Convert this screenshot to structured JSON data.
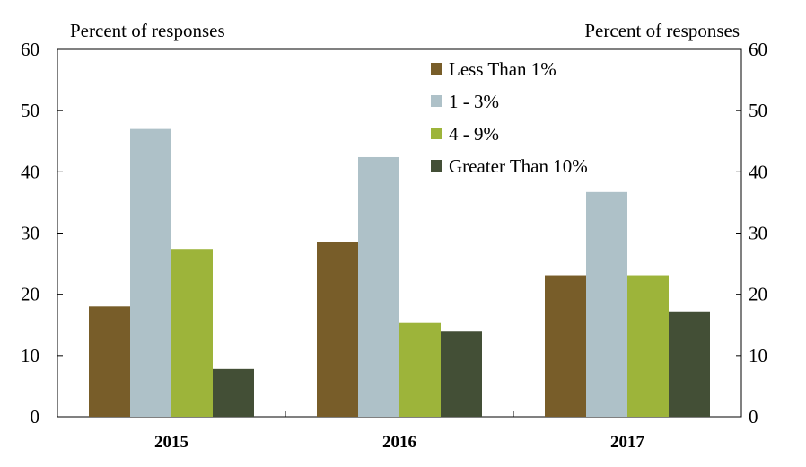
{
  "chart_data": {
    "type": "bar",
    "left_axis_unit": "Percent of responses",
    "right_axis_unit": "Percent of responses",
    "categories": [
      "2015",
      "2016",
      "2017"
    ],
    "series": [
      {
        "name": "Less Than 1%",
        "values": [
          18.0,
          28.6,
          23.1
        ],
        "color": "#785d29"
      },
      {
        "name": "1 - 3%",
        "values": [
          47.0,
          42.4,
          36.7
        ],
        "color": "#aec1c8"
      },
      {
        "name": "4 - 9%",
        "values": [
          27.4,
          15.3,
          23.1
        ],
        "color": "#9db43a"
      },
      {
        "name": "Greater Than 10%",
        "values": [
          7.8,
          13.9,
          17.2
        ],
        "color": "#434f36"
      }
    ],
    "ylim": [
      0,
      60
    ],
    "yticks": [
      "0",
      "10",
      "20",
      "30",
      "40",
      "50",
      "60"
    ],
    "grid": false,
    "legend_position": "top-right"
  }
}
